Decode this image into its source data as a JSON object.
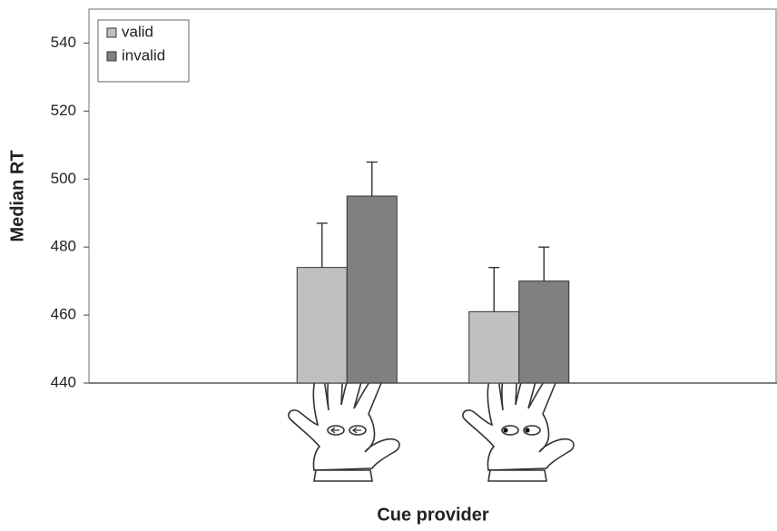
{
  "chart_data": {
    "type": "bar",
    "y_label": "Median RT",
    "x_label": "Cue provider",
    "categories": [
      null,
      null,
      null,
      null
    ],
    "series": [
      {
        "name": "valid",
        "color": "#c0c0c0",
        "values": [
          null,
          474,
          461,
          null
        ],
        "errors": [
          null,
          13,
          13,
          null
        ]
      },
      {
        "name": "invalid",
        "color": "#808080",
        "values": [
          null,
          495,
          470,
          null
        ],
        "errors": [
          null,
          10,
          10,
          null
        ]
      }
    ],
    "ylim": [
      440,
      550
    ],
    "yticks": [
      440,
      460,
      480,
      500,
      520,
      540
    ],
    "grid": false,
    "legend": "top-left"
  }
}
